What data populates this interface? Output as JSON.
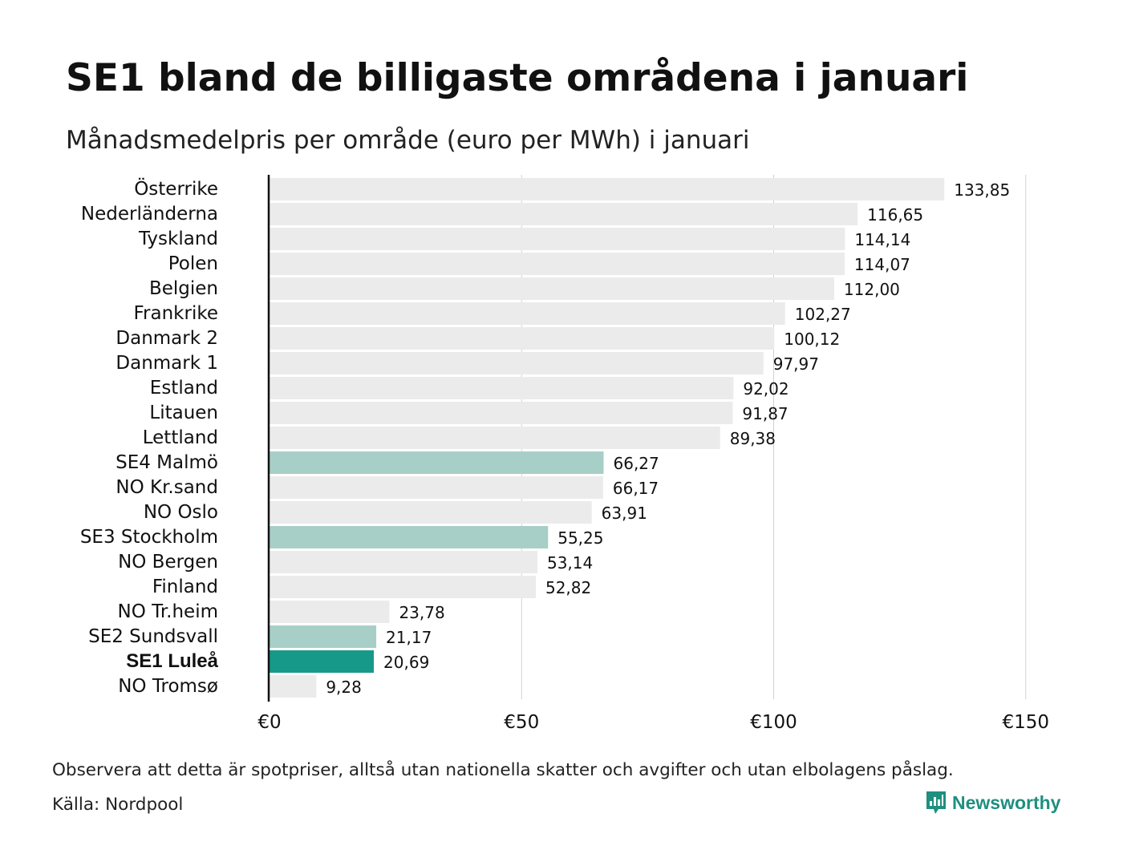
{
  "chart_data": {
    "type": "bar",
    "orientation": "horizontal",
    "title": "SE1 bland de billigaste områdena i januari",
    "subtitle": "Månadsmedelpris per område (euro per MWh) i januari",
    "categories": [
      "Österrike",
      "Nederländerna",
      "Tyskland",
      "Polen",
      "Belgien",
      "Frankrike",
      "Danmark  2",
      "Danmark  1",
      "Estland",
      "Litauen",
      "Lettland",
      "SE4  Malmö",
      "NO Kr.sand",
      "NO Oslo",
      "SE3  Stockholm",
      "NO Bergen",
      "Finland",
      "NO Tr.heim",
      "SE2  Sundsvall",
      "SE1 Luleå",
      "NO Tromsø"
    ],
    "values": [
      133.85,
      116.65,
      114.14,
      114.07,
      112.0,
      102.27,
      100.12,
      97.97,
      92.02,
      91.87,
      89.38,
      66.27,
      66.17,
      63.91,
      55.25,
      53.14,
      52.82,
      23.78,
      21.17,
      20.69,
      9.28
    ],
    "value_labels": [
      "133,85",
      "116,65",
      "114,14",
      "114,07",
      "112,00",
      "102,27",
      "100,12",
      "97,97",
      "92,02",
      "91,87",
      "89,38",
      "66,27",
      "66,17",
      "63,91",
      "55,25",
      "53,14",
      "52,82",
      "23,78",
      "21,17",
      "20,69",
      "9,28"
    ],
    "highlight": [
      "none",
      "none",
      "none",
      "none",
      "none",
      "none",
      "none",
      "none",
      "none",
      "none",
      "none",
      "light",
      "none",
      "none",
      "light",
      "none",
      "none",
      "none",
      "light",
      "strong",
      "none"
    ],
    "bold_category": "SE1 Luleå",
    "xlim": [
      0,
      150
    ],
    "xticks": [
      0,
      50,
      100,
      150
    ],
    "xtick_labels": [
      "€0",
      "€50",
      "€100",
      "€150"
    ],
    "xlabel": "",
    "ylabel": "",
    "grid": "vertical",
    "colors": {
      "default_bar": "#ebebeb",
      "light_highlight": "#a7cfc7",
      "strong_highlight": "#17998a",
      "gridline": "#d0d0d8",
      "axis_line": "#111111"
    }
  },
  "footer": {
    "note": "Observera att detta är spotpriser, alltså utan nationella skatter och avgifter och utan elbolagens påslag.",
    "source": "Källa: Nordpool"
  },
  "logo": {
    "text": "Newsworthy",
    "icon": "newsworthy-logo-icon",
    "color": "#1f8f7f"
  }
}
